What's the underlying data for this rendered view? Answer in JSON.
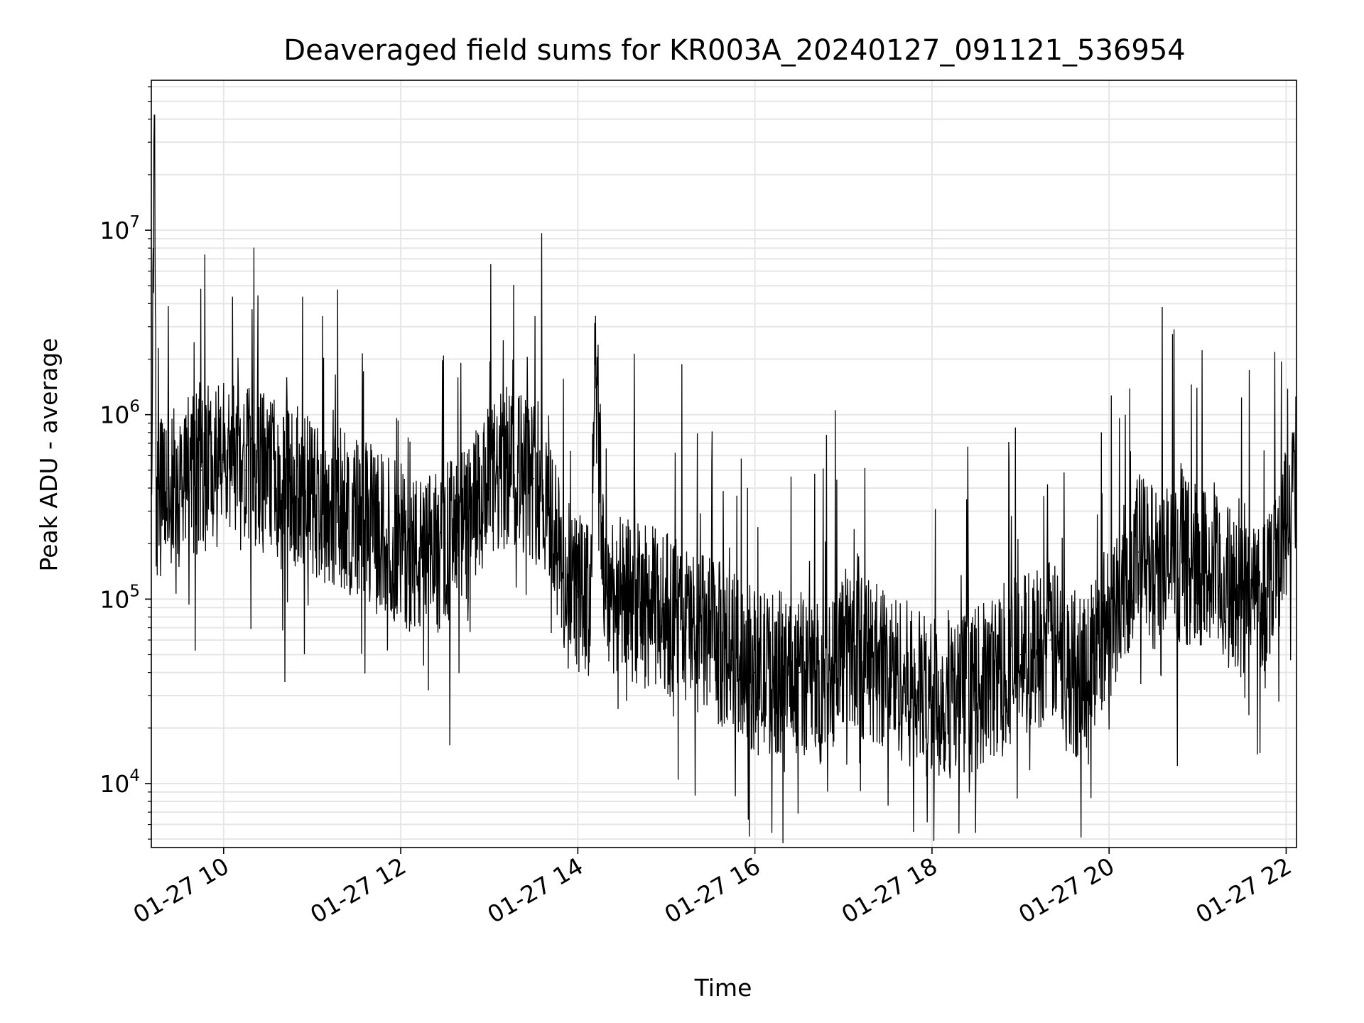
{
  "chart_data": {
    "type": "line",
    "title": "Deaveraged field sums for KR003A_20240127_091121_536954",
    "xlabel": "Time",
    "ylabel": "Peak ADU - average",
    "yscale": "log",
    "ylim": [
      4500,
      65000000
    ],
    "xlim": [
      "01-27 09:11",
      "01-27 22:07"
    ],
    "grid": true,
    "legend": "none",
    "colors": {
      "line": "#000000",
      "grid": "#e6e6e6",
      "axes": "#000000"
    },
    "x_ticks": [
      {
        "t": "01-27 10:00",
        "label": "01-27 10"
      },
      {
        "t": "01-27 12:00",
        "label": "01-27 12"
      },
      {
        "t": "01-27 14:00",
        "label": "01-27 14"
      },
      {
        "t": "01-27 16:00",
        "label": "01-27 16"
      },
      {
        "t": "01-27 18:00",
        "label": "01-27 18"
      },
      {
        "t": "01-27 20:00",
        "label": "01-27 20"
      },
      {
        "t": "01-27 22:00",
        "label": "01-27 22"
      }
    ],
    "y_ticks": [
      {
        "value": 10000,
        "base": "10",
        "exp": "4"
      },
      {
        "value": 100000,
        "base": "10",
        "exp": "5"
      },
      {
        "value": 1000000,
        "base": "10",
        "exp": "6"
      },
      {
        "value": 10000000,
        "base": "10",
        "exp": "7"
      }
    ],
    "series": [
      {
        "x": [
          "01-27 09:11",
          "01-27 09:13",
          "01-27 09:15",
          "01-27 09:18",
          "01-27 09:22",
          "01-27 09:28",
          "01-27 09:35",
          "01-27 09:45",
          "01-27 10:00",
          "01-27 10:15",
          "01-27 10:30",
          "01-27 10:45",
          "01-27 11:00",
          "01-27 11:15",
          "01-27 11:30",
          "01-27 11:45",
          "01-27 12:00",
          "01-27 12:15",
          "01-27 12:30",
          "01-27 12:45",
          "01-27 13:00",
          "01-27 13:15",
          "01-27 13:30",
          "01-27 13:40",
          "01-27 13:50",
          "01-27 14:00",
          "01-27 14:08",
          "01-27 14:12",
          "01-27 14:18",
          "01-27 14:30",
          "01-27 15:00",
          "01-27 15:30",
          "01-27 15:50",
          "01-27 16:00",
          "01-27 16:30",
          "01-27 16:45",
          "01-27 17:00",
          "01-27 17:30",
          "01-27 18:00",
          "01-27 18:30",
          "01-27 19:00",
          "01-27 19:20",
          "01-27 19:40",
          "01-27 20:00",
          "01-27 20:20",
          "01-27 20:30",
          "01-27 21:00",
          "01-27 21:30",
          "01-27 21:45",
          "01-27 22:00",
          "01-27 22:07"
        ],
        "values": [
          250000,
          42000000,
          300000,
          350000,
          400000,
          380000,
          450000,
          500000,
          550000,
          500000,
          480000,
          420000,
          350000,
          320000,
          280000,
          230000,
          200000,
          160000,
          200000,
          250000,
          400000,
          550000,
          450000,
          350000,
          130000,
          110000,
          90000,
          1900000,
          120000,
          100000,
          85000,
          60000,
          50000,
          40000,
          40000,
          35000,
          55000,
          42000,
          28000,
          32000,
          50000,
          60000,
          35000,
          80000,
          180000,
          150000,
          160000,
          100000,
          110000,
          250000,
          500000
        ]
      }
    ]
  }
}
